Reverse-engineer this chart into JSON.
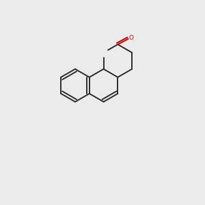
{
  "bg_color": "#EBEBEB",
  "bond_color": "#2B2B2B",
  "oxygen_color": "#CC0000",
  "stereo_label_color": "#4A7A7A",
  "title": "",
  "figsize": [
    3.0,
    3.0
  ],
  "dpi": 100
}
